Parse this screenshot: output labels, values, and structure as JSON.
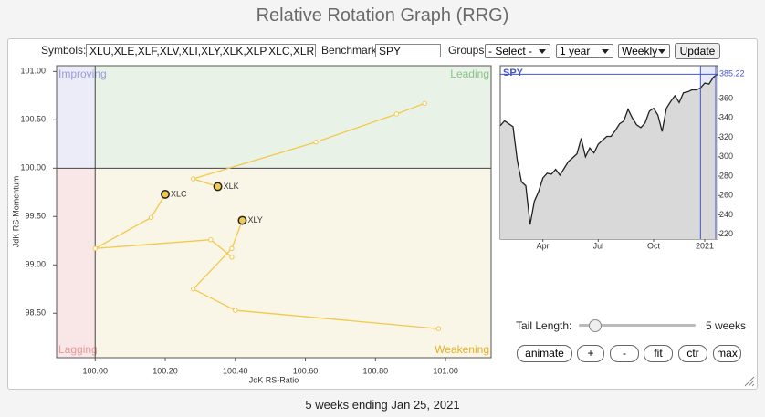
{
  "header": {
    "title": "Relative Rotation Graph (RRG)"
  },
  "controls": {
    "symbols_label": "Symbols:",
    "symbols": "XLU,XLE,XLF,XLV,XLI,XLY,XLK,XLP,XLC,XLRE,XL",
    "benchmark_label": "Benchmark:",
    "benchmark": "SPY",
    "groups_label": "Groups:",
    "groups": "- Select -",
    "period": "1 year",
    "frequency": "Weekly",
    "update": "Update"
  },
  "chart_data": [
    {
      "type": "scatter",
      "xlabel": "JdK RS-Ratio",
      "ylabel": "JdK RS-Momentum",
      "quadrants": [
        {
          "name": "Improving",
          "color": "#9a9ade",
          "fill": "#ececf8"
        },
        {
          "name": "Leading",
          "color": "#86c486",
          "fill": "#e9f2e7"
        },
        {
          "name": "Lagging",
          "color": "#e89a9a",
          "fill": "#f9e7e7"
        },
        {
          "name": "Weakening",
          "color": "#e8b020",
          "fill": "#f9f5e7"
        }
      ],
      "reference": 100,
      "xlim": [
        99.89,
        101.13
      ],
      "ylim": [
        98.04,
        101.06
      ],
      "xticks": [
        {
          "value": 100,
          "label": "100.00"
        },
        {
          "value": 100.2,
          "label": "100.20"
        },
        {
          "value": 100.4,
          "label": "100.40"
        },
        {
          "value": 100.6,
          "label": "100.60"
        },
        {
          "value": 100.8,
          "label": "100.80"
        },
        {
          "value": 101,
          "label": "101.00"
        }
      ],
      "yticks": [
        {
          "value": 98.5,
          "label": "98.50"
        },
        {
          "value": 99,
          "label": "99.00"
        },
        {
          "value": 99.5,
          "label": "99.50"
        },
        {
          "value": 100,
          "label": "100.00"
        },
        {
          "value": 100.5,
          "label": "100.50"
        },
        {
          "value": 101,
          "label": "101.00"
        }
      ],
      "series": [
        {
          "name": "XLK",
          "color": "#f2c94c",
          "x": [
            100.94,
            100.86,
            100.63,
            100.28,
            100.35
          ],
          "values": [
            100.67,
            100.56,
            100.27,
            99.89,
            99.81
          ]
        },
        {
          "name": "XLC",
          "color": "#f2c94c",
          "x": [
            100.39,
            100.33,
            100.0,
            100.16,
            100.2
          ],
          "values": [
            99.08,
            99.26,
            99.17,
            99.49,
            99.73
          ]
        },
        {
          "name": "XLY",
          "color": "#f2c94c",
          "x": [
            100.98,
            100.4,
            100.28,
            100.39,
            100.42
          ],
          "values": [
            98.34,
            98.53,
            98.75,
            99.17,
            99.46
          ]
        }
      ]
    },
    {
      "type": "line",
      "title": "SPY",
      "color": "#222222",
      "highlight": "#4455cc",
      "categories": [
        null,
        null,
        null,
        null,
        null,
        null,
        null,
        null,
        null,
        null,
        "Apr",
        null,
        null,
        null,
        null,
        null,
        null,
        null,
        null,
        null,
        null,
        null,
        null,
        "Jul",
        null,
        null,
        null,
        null,
        null,
        null,
        null,
        null,
        null,
        null,
        null,
        null,
        "Oct",
        null,
        null,
        null,
        null,
        null,
        null,
        null,
        null,
        null,
        null,
        null,
        "2021",
        null,
        null,
        null
      ],
      "values": [
        332,
        337,
        334,
        331,
        296,
        274,
        270,
        230,
        254,
        264,
        278,
        283,
        282,
        287,
        281,
        288,
        295,
        299,
        303,
        319,
        300,
        309,
        304,
        313,
        317,
        321,
        321,
        327,
        334,
        337,
        349,
        340,
        333,
        330,
        335,
        347,
        350,
        343,
        326,
        350,
        357,
        363,
        356,
        366,
        367,
        369,
        369,
        371,
        376,
        375,
        382,
        385.22
      ],
      "ylim": [
        215,
        394
      ],
      "yticks": [
        220,
        240,
        260,
        280,
        300,
        320,
        340,
        360
      ]
    }
  ],
  "tail_controls": {
    "label": "Tail Length:",
    "value": "5 weeks",
    "buttons": [
      "animate",
      "+",
      "-",
      "fit",
      "ctr",
      "max"
    ]
  },
  "footer": "5 weeks ending Jan 25, 2021"
}
